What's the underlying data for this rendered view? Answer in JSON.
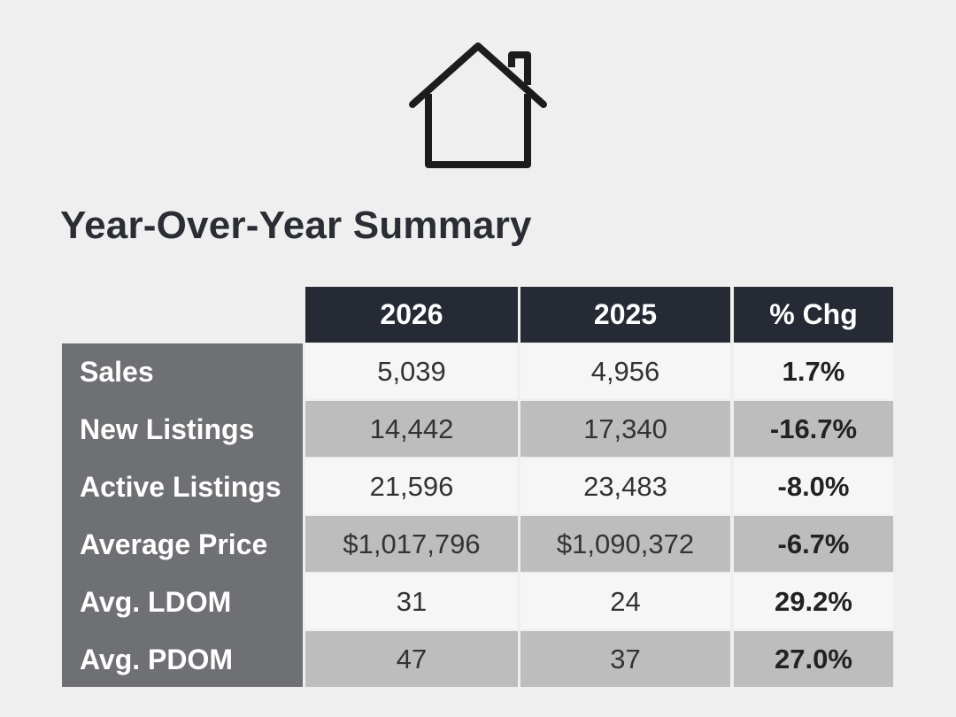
{
  "header": {
    "icon": "house-icon",
    "title": "Year-Over-Year Summary"
  },
  "table": {
    "columns": [
      "2026",
      "2025",
      "% Chg"
    ],
    "rows": [
      {
        "label": "Sales",
        "v2026": "5,039",
        "v2025": "4,956",
        "chg": "1.7%"
      },
      {
        "label": "New Listings",
        "v2026": "14,442",
        "v2025": "17,340",
        "chg": "-16.7%"
      },
      {
        "label": "Active Listings",
        "v2026": "21,596",
        "v2025": "23,483",
        "chg": "-8.0%"
      },
      {
        "label": "Average Price",
        "v2026": "$1,017,796",
        "v2025": "$1,090,372",
        "chg": "-6.7%"
      },
      {
        "label": "Avg. LDOM",
        "v2026": "31",
        "v2025": "24",
        "chg": "29.2%"
      },
      {
        "label": "Avg. PDOM",
        "v2026": "47",
        "v2025": "37",
        "chg": "27.0%"
      }
    ]
  },
  "colors": {
    "background": "#efefef",
    "header": "#262a34",
    "sidebar": "#6e7073",
    "row_light": "#f6f6f6",
    "row_dark": "#bcbdbc"
  }
}
